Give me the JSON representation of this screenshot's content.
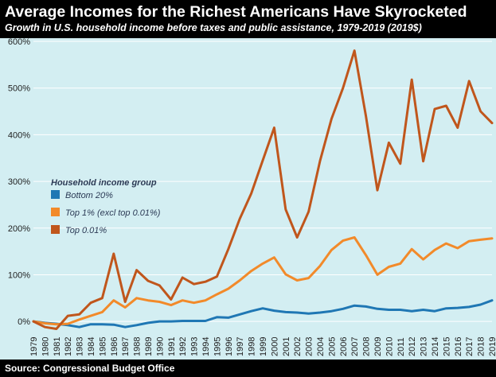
{
  "header": {
    "title": "Average Incomes for the Richest Americans Have Skyrocketed",
    "subtitle": "Growth in U.S. household income before taxes and public assistance, 1979-2019 (2019$)"
  },
  "footer": {
    "source": "Source: Congressional Budget Office"
  },
  "chart_data": {
    "type": "line",
    "title": "Average Incomes for the Richest Americans Have Skyrocketed",
    "subtitle": "Growth in U.S. household income before taxes and public assistance, 1979-2019 (2019$)",
    "xlabel": "",
    "ylabel": "",
    "ylim": [
      -10,
      600
    ],
    "yticks": [
      0,
      100,
      200,
      300,
      400,
      500,
      600
    ],
    "ytick_labels": [
      "0%",
      "100%",
      "200%",
      "300%",
      "400%",
      "500%",
      "600%"
    ],
    "grid": true,
    "legend_title": "Household income group",
    "legend_position": "left",
    "x": [
      "1979",
      "1980",
      "1981",
      "1982",
      "1983",
      "1984",
      "1985",
      "1986",
      "1987",
      "1988",
      "1989",
      "1990",
      "1991",
      "1992",
      "1993",
      "1994",
      "1995",
      "1996",
      "1997",
      "1998",
      "1999",
      "2000",
      "2001",
      "2002",
      "2003",
      "2004",
      "2005",
      "2006",
      "2007",
      "2008",
      "2009",
      "2010",
      "2011",
      "2012",
      "2013",
      "2014",
      "2015",
      "2016",
      "2017",
      "2018",
      "2019"
    ],
    "series": [
      {
        "name": "Bottom 20%",
        "color": "#1f77b4",
        "values": [
          0,
          -3,
          -5,
          -8,
          -12,
          -6,
          -6,
          -7,
          -12,
          -8,
          -3,
          0,
          0,
          1,
          1,
          1,
          9,
          8,
          15,
          22,
          28,
          23,
          20,
          19,
          17,
          19,
          22,
          27,
          34,
          32,
          27,
          25,
          25,
          22,
          25,
          22,
          28,
          29,
          31,
          36,
          45
        ]
      },
      {
        "name": "Top 1% (excl top 0.01%)",
        "color": "#f28a2a",
        "values": [
          0,
          -4,
          -6,
          -5,
          4,
          12,
          20,
          45,
          30,
          50,
          45,
          42,
          35,
          45,
          40,
          45,
          58,
          70,
          88,
          108,
          124,
          137,
          101,
          88,
          93,
          119,
          153,
          173,
          180,
          142,
          100,
          117,
          124,
          155,
          133,
          153,
          167,
          157,
          172,
          175,
          178
        ]
      },
      {
        "name": "Top 0.01%",
        "color": "#c0561c",
        "values": [
          0,
          -12,
          -16,
          12,
          15,
          40,
          50,
          145,
          42,
          110,
          87,
          77,
          47,
          94,
          80,
          85,
          96,
          155,
          220,
          274,
          345,
          415,
          240,
          180,
          235,
          344,
          434,
          500,
          580,
          440,
          281,
          383,
          338,
          518,
          343,
          455,
          462,
          415,
          515,
          450,
          425
        ]
      }
    ]
  }
}
